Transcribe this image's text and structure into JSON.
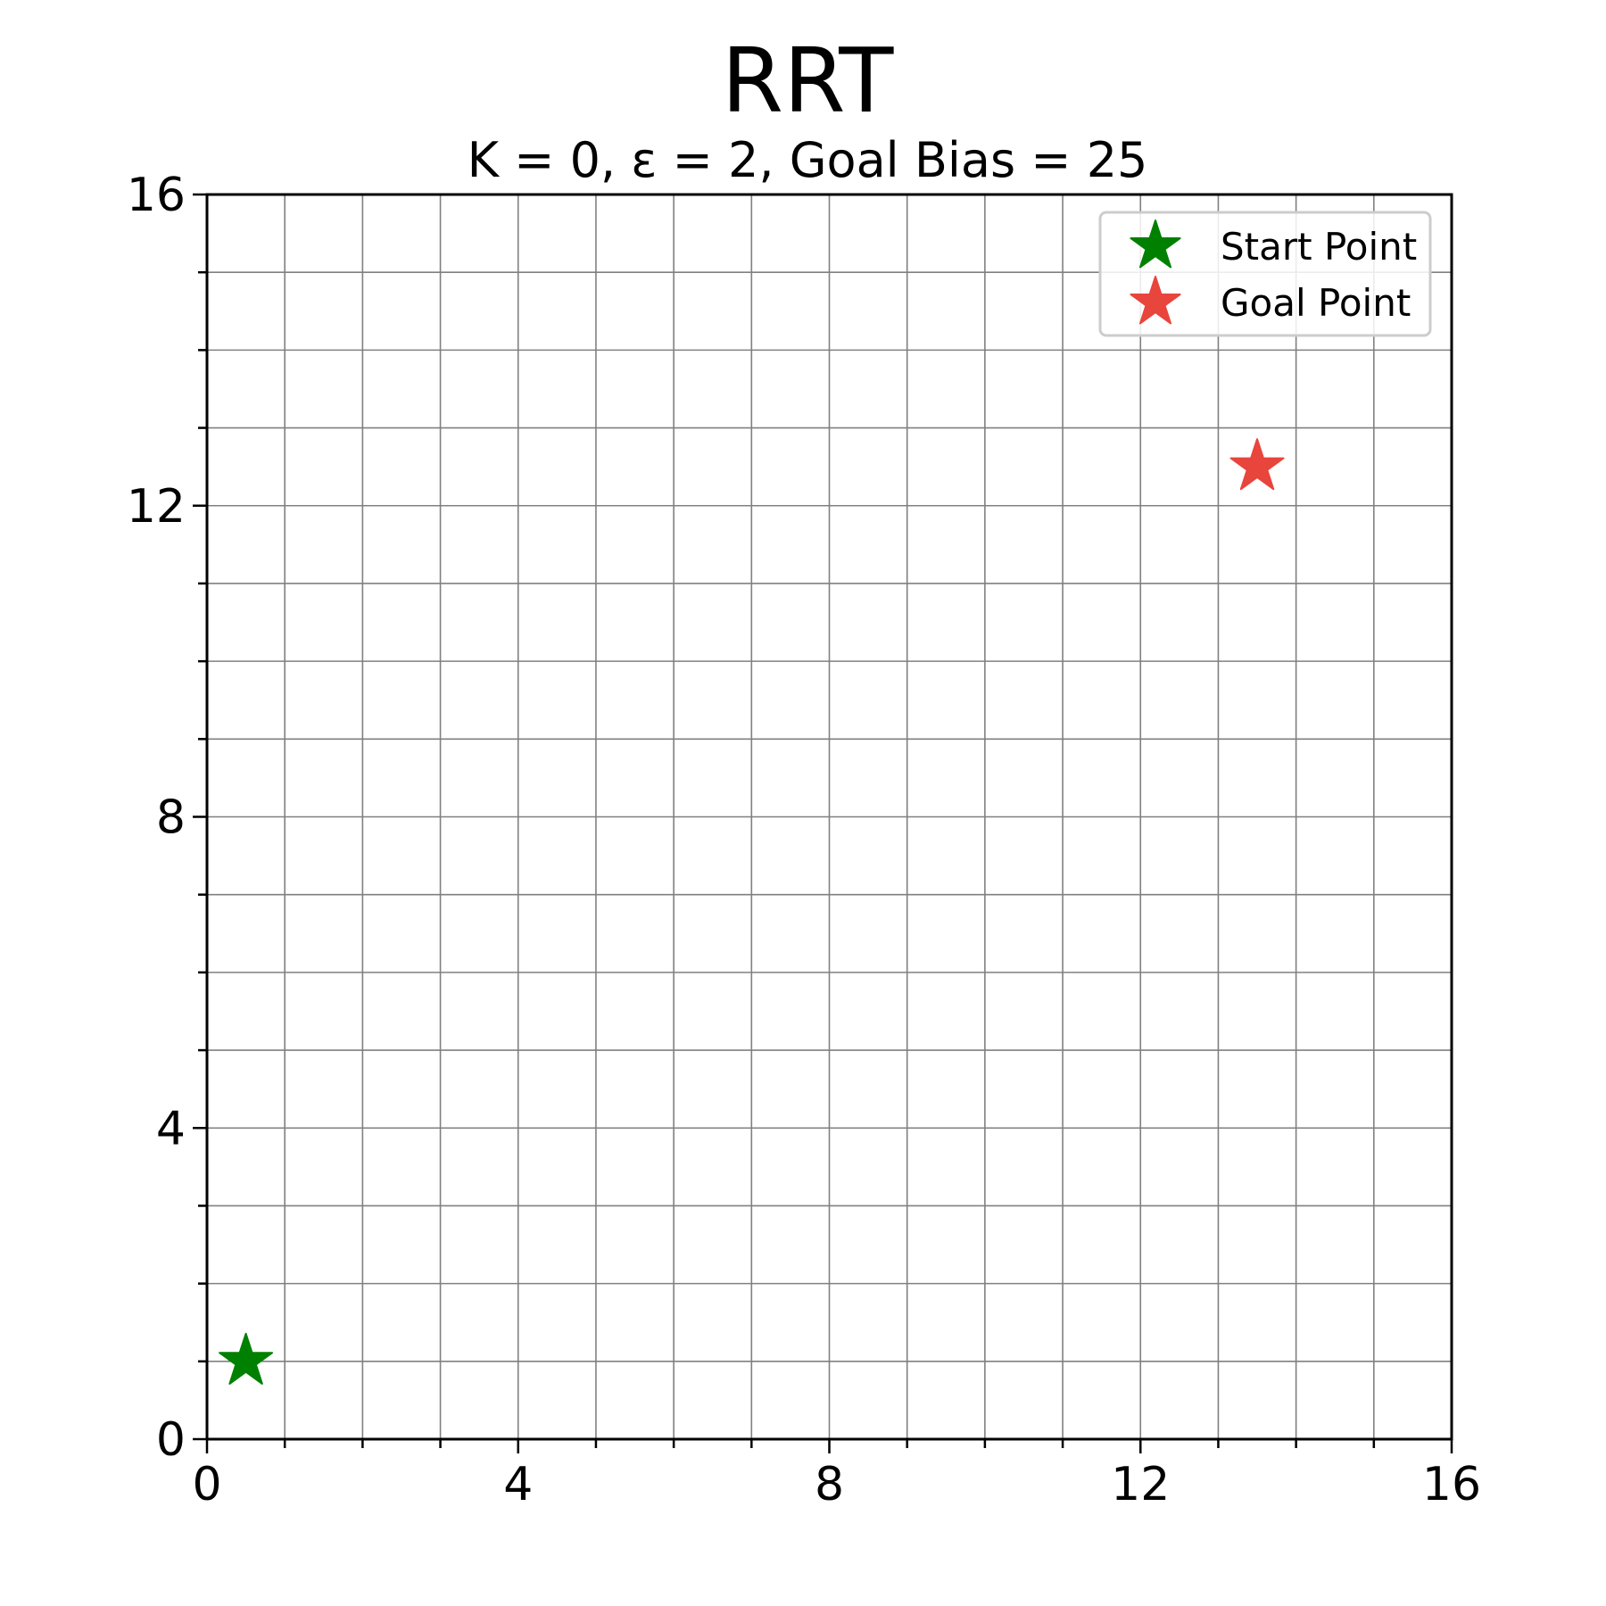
{
  "chart_data": {
    "type": "scatter",
    "title": "RRT",
    "subtitle": "K = 0, ε = 2, Goal Bias = 25",
    "xlabel": "",
    "ylabel": "",
    "xlim": [
      0,
      16
    ],
    "ylim": [
      0,
      16
    ],
    "xticks": [
      0,
      4,
      8,
      12,
      16
    ],
    "yticks": [
      0,
      4,
      8,
      12,
      16
    ],
    "minor_step": 1,
    "grid": true,
    "legend_position": "top-right",
    "series": [
      {
        "name": "Start Point",
        "marker": "star",
        "color": "#008000",
        "points": [
          [
            0.5,
            1.0
          ]
        ]
      },
      {
        "name": "Goal Point",
        "marker": "star",
        "color": "#e8453c",
        "points": [
          [
            13.5,
            12.5
          ]
        ]
      }
    ]
  }
}
